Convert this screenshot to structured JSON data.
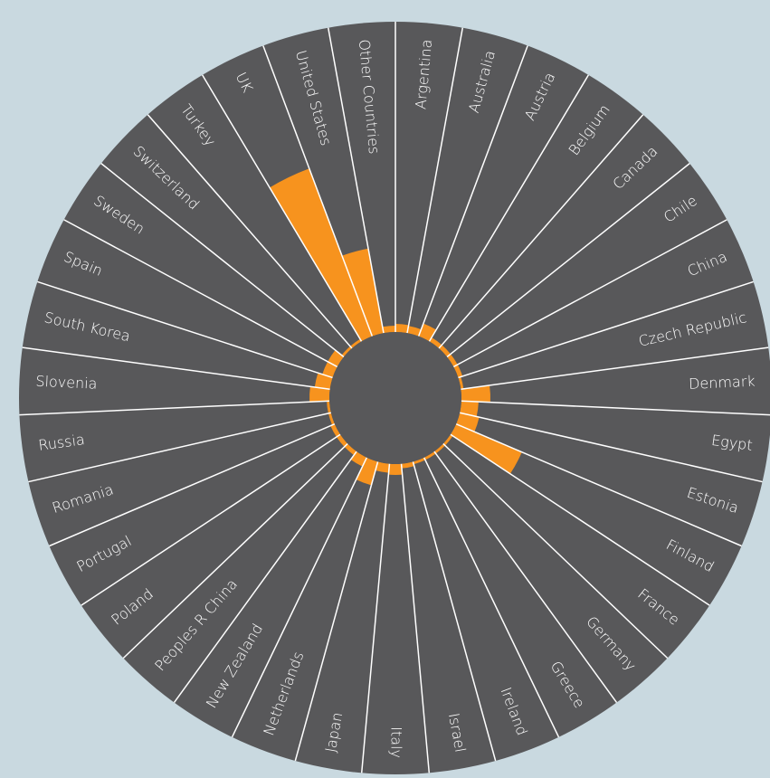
{
  "chart_data": {
    "type": "radial_bar",
    "categories": [
      "Argentina",
      "Australia",
      "Austria",
      "Belgium",
      "Canada",
      "Chile",
      "China",
      "Czech Republic",
      "Denmark",
      "Egypt",
      "Estonia",
      "Finland",
      "France",
      "Germany",
      "Greece",
      "Ireland",
      "Israel",
      "Italy",
      "Japan",
      "Netherlands",
      "New Zealand",
      "Peoples R China",
      "Poland",
      "Portugal",
      "Romania",
      "Russia",
      "Slovenia",
      "South Korea",
      "Spain",
      "Sweden",
      "Switzerland",
      "Turkey",
      "UK",
      "United States",
      "Other Countries"
    ],
    "values": [
      9,
      8,
      15,
      5,
      5,
      5,
      5,
      3,
      32,
      19,
      22,
      79,
      3,
      3,
      3,
      3,
      5,
      12,
      10,
      27,
      11,
      5,
      5,
      5,
      3,
      3,
      22,
      17,
      12,
      12,
      3,
      3,
      198,
      95,
      7
    ],
    "color": "#f7931e"
  }
}
